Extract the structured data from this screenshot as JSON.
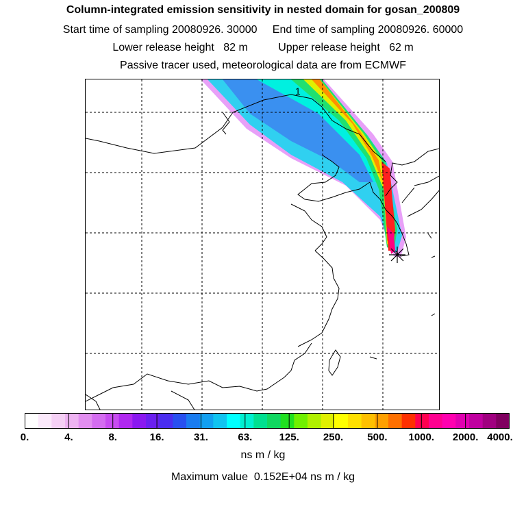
{
  "header": {
    "title": "Column-integrated emission sensitivity in nested domain for gosan_200809",
    "line2": "Start time of sampling 20080926. 30000     End time of sampling 20080926. 60000",
    "line3": "Lower release height   82 m          Upper release height   62 m",
    "line4": "Passive tracer used, meteorological data are from ECMWF"
  },
  "map": {
    "contour_label": "1",
    "source_marker": "release-site-star"
  },
  "colorbar": {
    "colors": [
      "#ffffff",
      "#fbe9fb",
      "#f5d0f5",
      "#eeb3f2",
      "#e28ef0",
      "#d46df0",
      "#c74cf0",
      "#b028f0",
      "#8a18f0",
      "#6a1ff0",
      "#4a2ef0",
      "#2850f0",
      "#1a7cf0",
      "#12a0f0",
      "#10c4f0",
      "#00ffff",
      "#00f0d0",
      "#00e090",
      "#10d860",
      "#20e020",
      "#70f000",
      "#b0f000",
      "#e0f000",
      "#ffff00",
      "#ffe000",
      "#ffc000",
      "#ffa000",
      "#ff7000",
      "#ff3000",
      "#ff0050",
      "#ff0090",
      "#ff00b0",
      "#e000b0",
      "#c000a0",
      "#a00080",
      "#800060"
    ],
    "labels": [
      "0.",
      "4.",
      "8.",
      "16.",
      "31.",
      "63.",
      "125.",
      "250.",
      "500.",
      "1000.",
      "2000.",
      "4000."
    ],
    "units": "ns m / kg"
  },
  "footer": {
    "max_value": "Maximum value  0.152E+04 ns m / kg"
  }
}
